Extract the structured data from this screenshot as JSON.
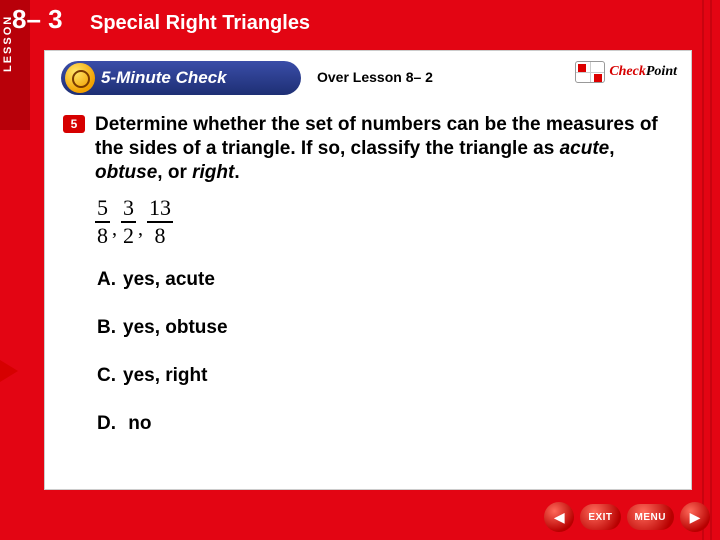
{
  "colors": {
    "brand_red": "#e30513",
    "tab_red": "#b80009",
    "answer_red": "#d60000",
    "pill_blue_top": "#3a4da8",
    "pill_blue_bottom": "#1e2f74",
    "white": "#ffffff"
  },
  "lesson": {
    "tab_label": "LESSON",
    "number": "8– 3",
    "title": "Special Right Triangles"
  },
  "fivemin": {
    "label": "5-Minute Check"
  },
  "over": "Over Lesson 8– 2",
  "checkpoint": {
    "red": "Check",
    "black": "Point"
  },
  "question": {
    "number": "5",
    "text_pre": "Determine whether the set of numbers can be the measures of the sides of a triangle. If so, classify the triangle as ",
    "em1": "acute",
    "sep1": ", ",
    "em2": "obtuse",
    "sep2": ", or ",
    "em3": "right",
    "tail": "."
  },
  "fractions": [
    {
      "num": "5",
      "den": "8"
    },
    {
      "num": "3",
      "den": "2"
    },
    {
      "num": "13",
      "den": "8"
    }
  ],
  "answers": {
    "a": {
      "letter": "A.",
      "text": "yes, acute"
    },
    "b": {
      "letter": "B.",
      "text": "yes, obtuse"
    },
    "c": {
      "letter": "C.",
      "text": "yes, right"
    },
    "d": {
      "letter": "D.",
      "text": " no"
    }
  },
  "correct_index": 2,
  "nav": {
    "exit": "EXIT",
    "menu": "MENU",
    "prev_glyph": "◀",
    "next_glyph": "▶"
  }
}
